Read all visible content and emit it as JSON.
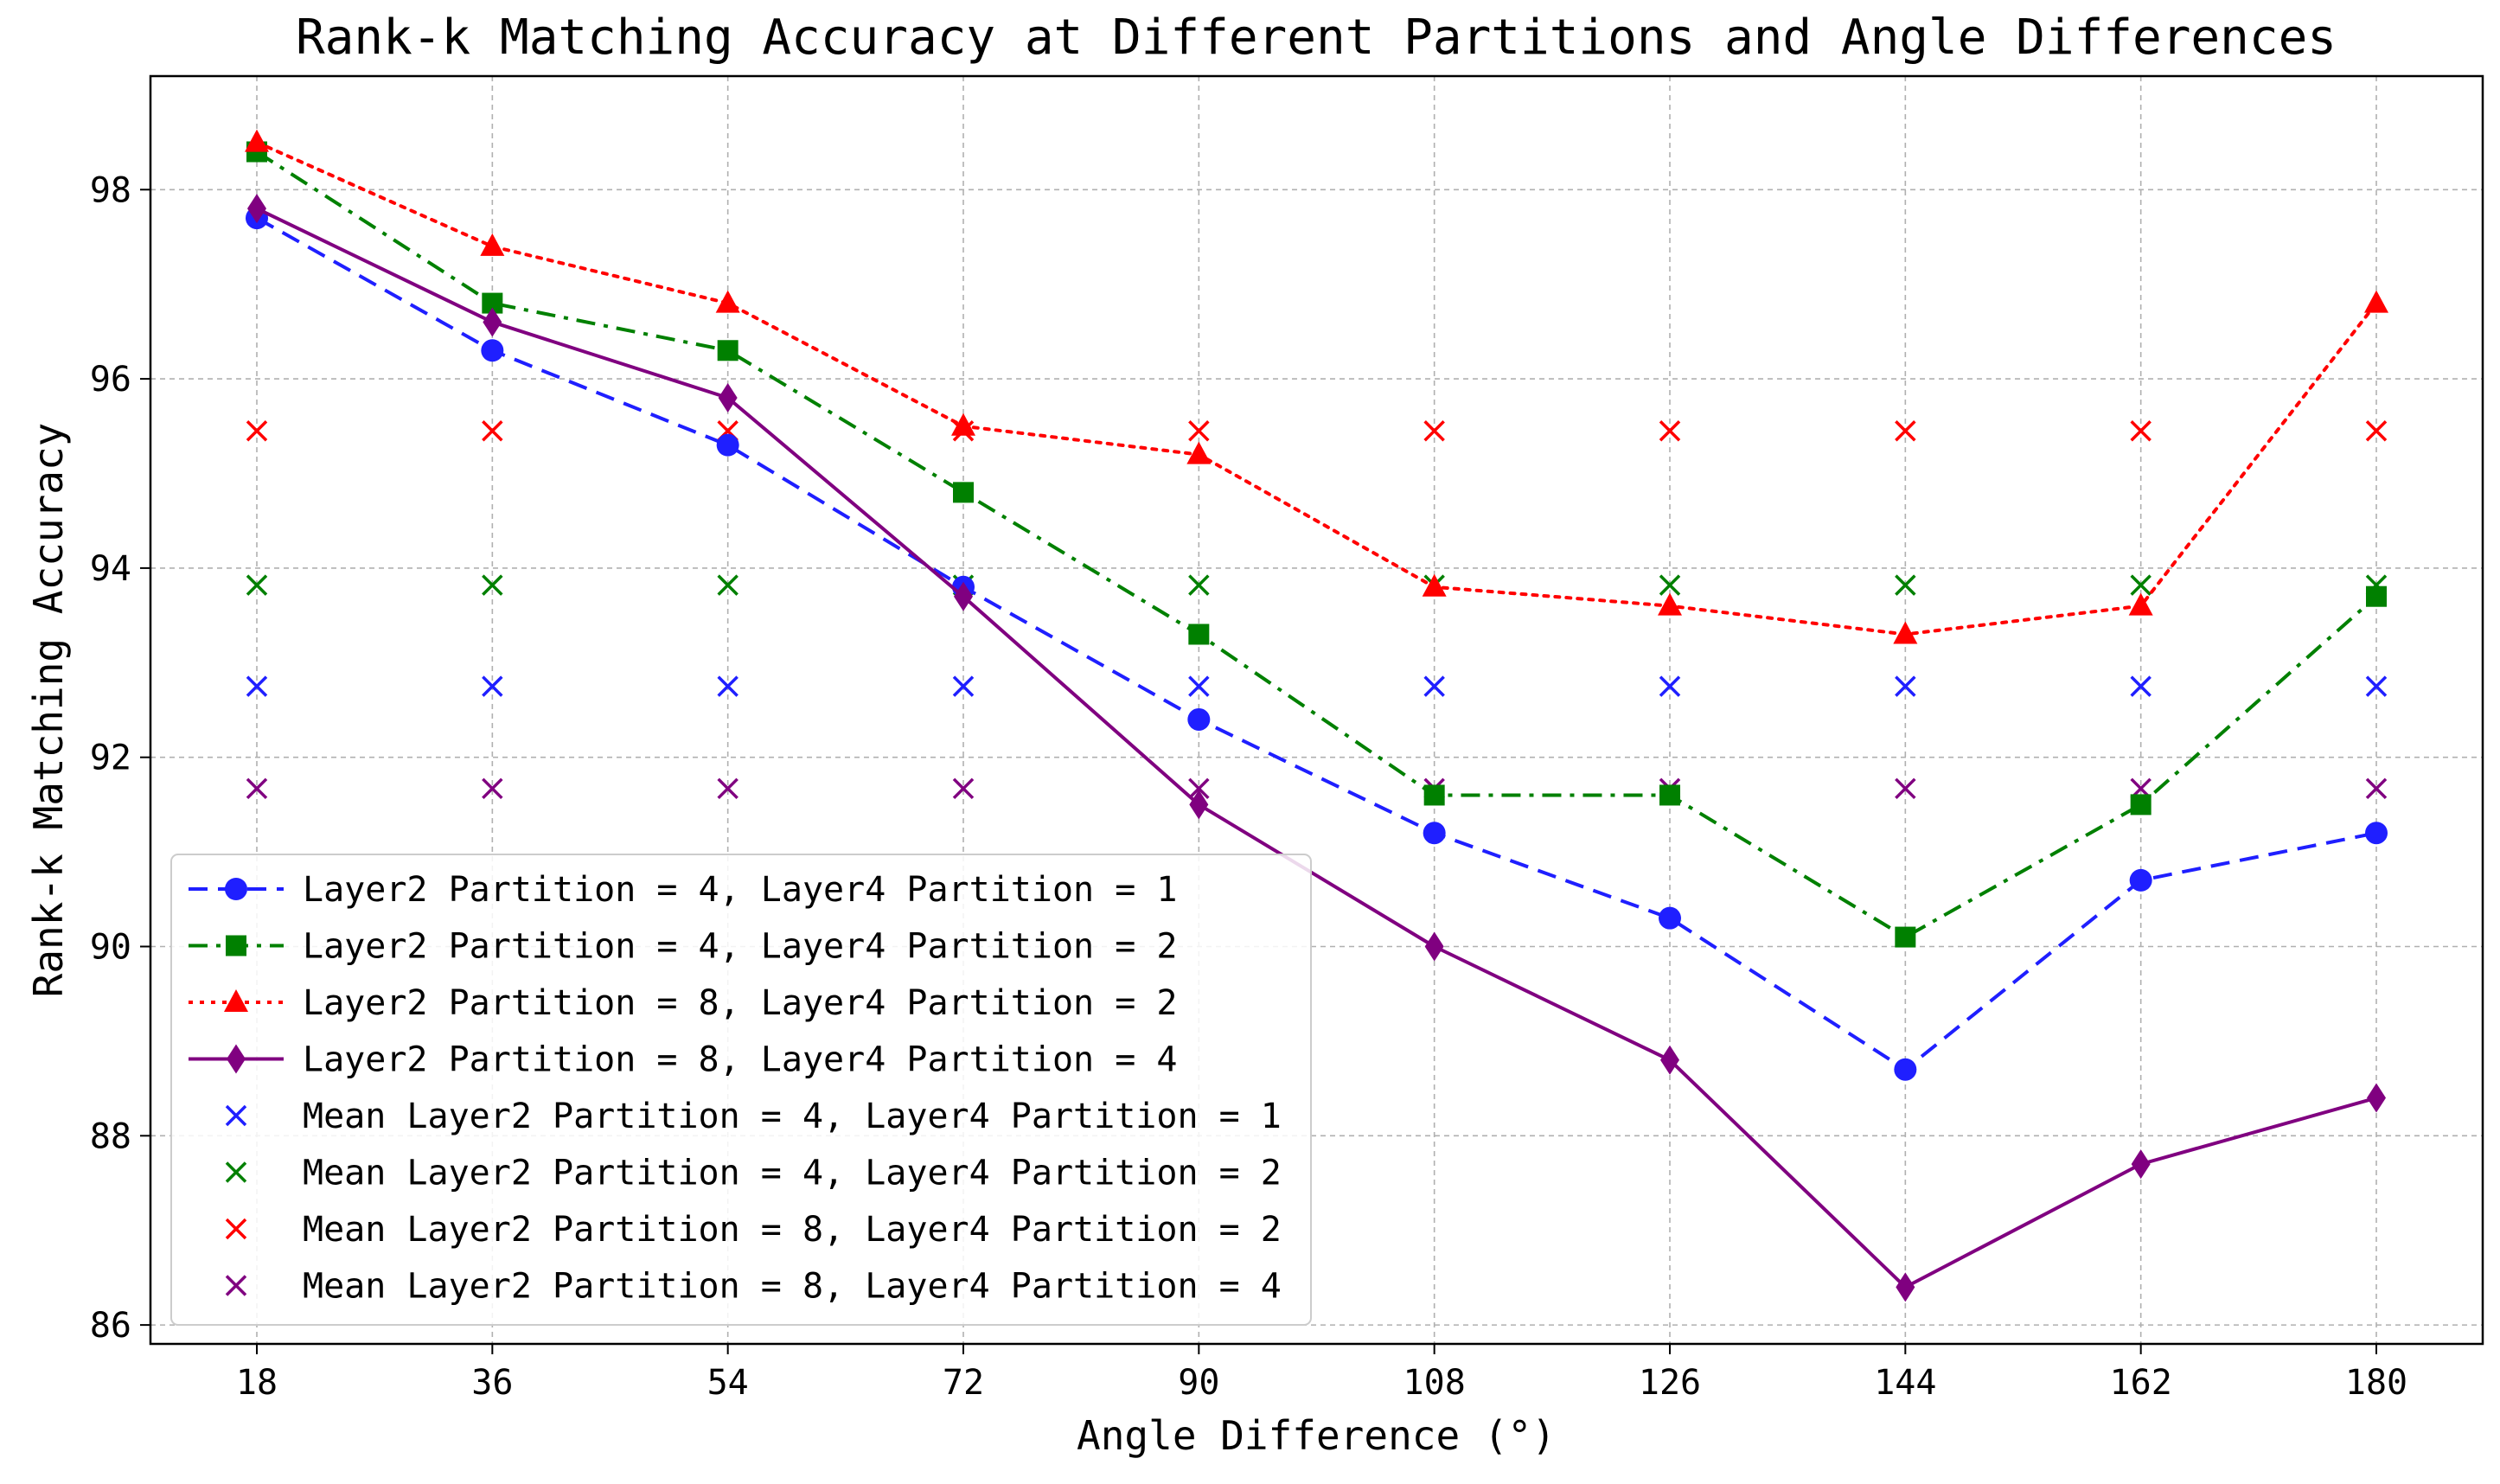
{
  "chart_data": {
    "type": "line",
    "title": "Rank-k Matching Accuracy at Different Partitions and Angle Differences",
    "xlabel": "Angle Difference (°)",
    "ylabel": "Rank-k Matching Accuracy",
    "x": [
      18,
      36,
      54,
      72,
      90,
      108,
      126,
      144,
      162,
      180
    ],
    "x_ticks": [
      "18",
      "36",
      "54",
      "72",
      "90",
      "108",
      "126",
      "144",
      "162",
      "180"
    ],
    "ylim": [
      85.8,
      99.2
    ],
    "y_ticks": [
      86,
      88,
      90,
      92,
      94,
      96,
      98
    ],
    "grid": true,
    "legend_position": "lower-left",
    "series": [
      {
        "name": "Layer2 Partition = 4, Layer4 Partition = 1",
        "color": "#1f1fff",
        "linestyle": "dashed",
        "marker": "circle",
        "values": [
          97.7,
          96.3,
          95.3,
          93.8,
          92.4,
          91.2,
          90.3,
          88.7,
          90.7,
          91.2
        ]
      },
      {
        "name": "Layer2 Partition = 4, Layer4 Partition = 2",
        "color": "#008000",
        "linestyle": "dashdot",
        "marker": "square",
        "values": [
          98.4,
          96.8,
          96.3,
          94.8,
          93.3,
          91.6,
          91.6,
          90.1,
          91.5,
          93.7
        ]
      },
      {
        "name": "Layer2 Partition = 8, Layer4 Partition = 2",
        "color": "#ff0000",
        "linestyle": "dotted",
        "marker": "triangle",
        "values": [
          98.5,
          97.4,
          96.8,
          95.5,
          95.2,
          93.8,
          93.6,
          93.3,
          93.6,
          96.8
        ]
      },
      {
        "name": "Layer2 Partition = 8, Layer4 Partition = 4",
        "color": "#800080",
        "linestyle": "solid",
        "marker": "diamond",
        "values": [
          97.8,
          96.6,
          95.8,
          93.7,
          91.5,
          90.0,
          88.8,
          86.4,
          87.7,
          88.4
        ]
      }
    ],
    "mean_series": [
      {
        "name": "Mean Layer2 Partition = 4, Layer4 Partition = 1",
        "color": "#1f1fff",
        "marker": "x",
        "value": 92.75
      },
      {
        "name": "Mean Layer2 Partition = 4, Layer4 Partition = 2",
        "color": "#008000",
        "marker": "x",
        "value": 93.82
      },
      {
        "name": "Mean Layer2 Partition = 8, Layer4 Partition = 2",
        "color": "#ff0000",
        "marker": "x",
        "value": 95.45
      },
      {
        "name": "Mean Layer2 Partition = 8, Layer4 Partition = 4",
        "color": "#800080",
        "marker": "x",
        "value": 91.67
      }
    ]
  }
}
